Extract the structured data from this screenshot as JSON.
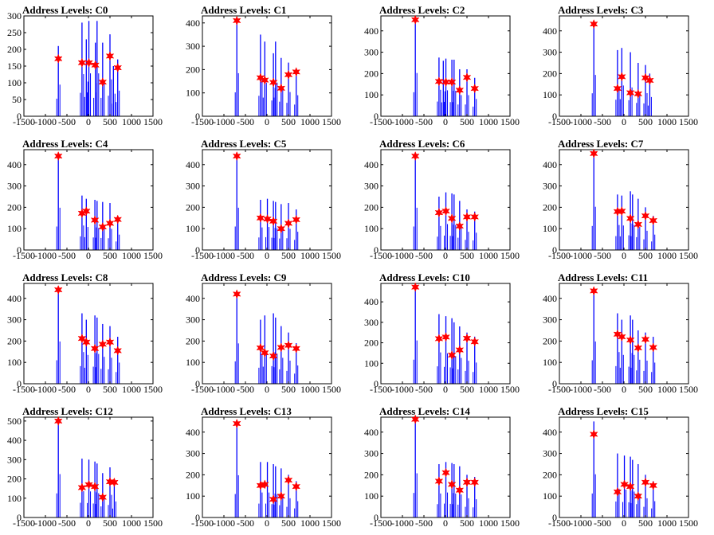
{
  "chart_data": [
    {
      "type": "bar",
      "title": "Address Levels: C0",
      "xlim": [
        -1500,
        1500
      ],
      "ylim": [
        0,
        300
      ],
      "yticks": [
        0,
        50,
        100,
        150,
        200,
        250,
        300
      ],
      "xticks": [
        -1500,
        -1000,
        -500,
        0,
        500,
        1000,
        1500
      ],
      "bars": [
        [
          -700,
          210
        ],
        [
          -150,
          280
        ],
        [
          -50,
          230
        ],
        [
          10,
          285
        ],
        [
          160,
          220
        ],
        [
          200,
          285
        ],
        [
          330,
          220
        ],
        [
          500,
          245
        ],
        [
          580,
          150
        ],
        [
          680,
          170
        ]
      ],
      "peaks": [
        [
          -700,
          172
        ],
        [
          -150,
          160
        ],
        [
          10,
          160
        ],
        [
          160,
          153
        ],
        [
          330,
          102
        ],
        [
          500,
          180
        ],
        [
          680,
          145
        ]
      ]
    },
    {
      "type": "bar",
      "title": "Address Levels: C1",
      "xlim": [
        -1500,
        1500
      ],
      "ylim": [
        0,
        430
      ],
      "yticks": [
        0,
        100,
        200,
        300,
        400
      ],
      "xticks": [
        -1500,
        -1000,
        -500,
        0,
        500,
        1000,
        1500
      ],
      "bars": [
        [
          -700,
          410
        ],
        [
          -150,
          350
        ],
        [
          -50,
          320
        ],
        [
          150,
          270
        ],
        [
          200,
          320
        ],
        [
          330,
          250
        ],
        [
          500,
          230
        ],
        [
          680,
          200
        ]
      ],
      "peaks": [
        [
          -700,
          410
        ],
        [
          -150,
          165
        ],
        [
          -50,
          155
        ],
        [
          150,
          145
        ],
        [
          330,
          120
        ],
        [
          500,
          178
        ],
        [
          680,
          190
        ]
      ]
    },
    {
      "type": "bar",
      "title": "Address Levels: C2",
      "xlim": [
        -1500,
        1500
      ],
      "ylim": [
        0,
        470
      ],
      "yticks": [
        0,
        100,
        200,
        300,
        400
      ],
      "xticks": [
        -1500,
        -1000,
        -500,
        0,
        500,
        1000,
        1500
      ],
      "bars": [
        [
          -700,
          450
        ],
        [
          -150,
          275
        ],
        [
          -50,
          260
        ],
        [
          10,
          270
        ],
        [
          150,
          265
        ],
        [
          200,
          265
        ],
        [
          330,
          220
        ],
        [
          500,
          220
        ],
        [
          680,
          180
        ]
      ],
      "peaks": [
        [
          -700,
          452
        ],
        [
          -150,
          163
        ],
        [
          10,
          160
        ],
        [
          150,
          160
        ],
        [
          330,
          122
        ],
        [
          500,
          182
        ],
        [
          680,
          130
        ]
      ]
    },
    {
      "type": "bar",
      "title": "Address Levels: C3",
      "xlim": [
        -1500,
        1500
      ],
      "ylim": [
        0,
        470
      ],
      "yticks": [
        0,
        100,
        200,
        300,
        400
      ],
      "xticks": [
        -1500,
        -1000,
        -500,
        0,
        500,
        1000,
        1500
      ],
      "bars": [
        [
          -700,
          430
        ],
        [
          -150,
          310
        ],
        [
          -50,
          320
        ],
        [
          150,
          300
        ],
        [
          330,
          250
        ],
        [
          500,
          240
        ],
        [
          600,
          200
        ]
      ],
      "peaks": [
        [
          -700,
          432
        ],
        [
          -150,
          130
        ],
        [
          -50,
          185
        ],
        [
          150,
          110
        ],
        [
          330,
          105
        ],
        [
          500,
          180
        ],
        [
          600,
          168
        ]
      ]
    },
    {
      "type": "bar",
      "title": "Address Levels: C4",
      "xlim": [
        -1500,
        1500
      ],
      "ylim": [
        0,
        470
      ],
      "yticks": [
        0,
        100,
        200,
        300,
        400
      ],
      "xticks": [
        -1500,
        -1000,
        -500,
        0,
        500,
        1000,
        1500
      ],
      "bars": [
        [
          -700,
          440
        ],
        [
          -150,
          255
        ],
        [
          -50,
          240
        ],
        [
          150,
          235
        ],
        [
          200,
          230
        ],
        [
          330,
          225
        ],
        [
          500,
          220
        ],
        [
          680,
          160
        ]
      ],
      "peaks": [
        [
          -700,
          440
        ],
        [
          -150,
          172
        ],
        [
          -50,
          182
        ],
        [
          150,
          140
        ],
        [
          330,
          108
        ],
        [
          500,
          125
        ],
        [
          680,
          143
        ]
      ]
    },
    {
      "type": "bar",
      "title": "Address Levels: C5",
      "xlim": [
        -1500,
        1500
      ],
      "ylim": [
        0,
        470
      ],
      "yticks": [
        0,
        100,
        200,
        300,
        400
      ],
      "xticks": [
        -1500,
        -1000,
        -500,
        0,
        500,
        1000,
        1500
      ],
      "bars": [
        [
          -700,
          440
        ],
        [
          -150,
          235
        ],
        [
          10,
          240
        ],
        [
          150,
          230
        ],
        [
          200,
          225
        ],
        [
          330,
          215
        ],
        [
          500,
          220
        ],
        [
          680,
          190
        ]
      ],
      "peaks": [
        [
          -700,
          440
        ],
        [
          -150,
          150
        ],
        [
          10,
          145
        ],
        [
          150,
          135
        ],
        [
          330,
          100
        ],
        [
          500,
          125
        ],
        [
          680,
          142
        ]
      ]
    },
    {
      "type": "bar",
      "title": "Address Levels: C6",
      "xlim": [
        -1500,
        1500
      ],
      "ylim": [
        0,
        470
      ],
      "yticks": [
        0,
        100,
        200,
        300,
        400
      ],
      "xticks": [
        -1500,
        -1000,
        -500,
        0,
        500,
        1000,
        1500
      ],
      "bars": [
        [
          -700,
          440
        ],
        [
          -150,
          250
        ],
        [
          10,
          270
        ],
        [
          150,
          265
        ],
        [
          200,
          260
        ],
        [
          330,
          230
        ],
        [
          500,
          190
        ],
        [
          680,
          180
        ]
      ],
      "peaks": [
        [
          -700,
          440
        ],
        [
          -150,
          175
        ],
        [
          10,
          182
        ],
        [
          150,
          148
        ],
        [
          330,
          112
        ],
        [
          500,
          155
        ],
        [
          680,
          155
        ]
      ]
    },
    {
      "type": "bar",
      "title": "Address Levels: C7",
      "xlim": [
        -1500,
        1500
      ],
      "ylim": [
        0,
        470
      ],
      "yticks": [
        0,
        100,
        200,
        300,
        400
      ],
      "xticks": [
        -1500,
        -1000,
        -500,
        0,
        500,
        1000,
        1500
      ],
      "bars": [
        [
          -700,
          450
        ],
        [
          -150,
          260
        ],
        [
          -50,
          255
        ],
        [
          150,
          275
        ],
        [
          200,
          260
        ],
        [
          330,
          240
        ],
        [
          500,
          200
        ],
        [
          680,
          160
        ]
      ],
      "peaks": [
        [
          -700,
          452
        ],
        [
          -150,
          180
        ],
        [
          -50,
          182
        ],
        [
          150,
          148
        ],
        [
          330,
          120
        ],
        [
          500,
          160
        ],
        [
          680,
          138
        ]
      ]
    },
    {
      "type": "bar",
      "title": "Address Levels: C8",
      "xlim": [
        -1500,
        1500
      ],
      "ylim": [
        0,
        470
      ],
      "yticks": [
        0,
        100,
        200,
        300,
        400
      ],
      "xticks": [
        -1500,
        -1000,
        -500,
        0,
        500,
        1000,
        1500
      ],
      "bars": [
        [
          -700,
          440
        ],
        [
          -150,
          330
        ],
        [
          -50,
          300
        ],
        [
          150,
          320
        ],
        [
          200,
          310
        ],
        [
          330,
          280
        ],
        [
          500,
          270
        ],
        [
          680,
          220
        ]
      ],
      "peaks": [
        [
          -700,
          440
        ],
        [
          -150,
          212
        ],
        [
          -50,
          195
        ],
        [
          150,
          165
        ],
        [
          330,
          185
        ],
        [
          500,
          195
        ],
        [
          680,
          155
        ]
      ]
    },
    {
      "type": "bar",
      "title": "Address Levels: C9",
      "xlim": [
        -1500,
        1500
      ],
      "ylim": [
        0,
        470
      ],
      "yticks": [
        0,
        100,
        200,
        300,
        400
      ],
      "xticks": [
        -1500,
        -1000,
        -500,
        0,
        500,
        1000,
        1500
      ],
      "bars": [
        [
          -700,
          420
        ],
        [
          -150,
          300
        ],
        [
          -50,
          320
        ],
        [
          150,
          330
        ],
        [
          200,
          310
        ],
        [
          330,
          270
        ],
        [
          500,
          240
        ],
        [
          680,
          190
        ]
      ],
      "peaks": [
        [
          -700,
          420
        ],
        [
          -150,
          168
        ],
        [
          -50,
          145
        ],
        [
          150,
          130
        ],
        [
          330,
          170
        ],
        [
          500,
          180
        ],
        [
          680,
          165
        ]
      ]
    },
    {
      "type": "bar",
      "title": "Address Levels: C10",
      "xlim": [
        -1500,
        1500
      ],
      "ylim": [
        0,
        490
      ],
      "yticks": [
        0,
        100,
        200,
        300,
        400
      ],
      "xticks": [
        -1500,
        -1000,
        -500,
        0,
        500,
        1000,
        1500
      ],
      "bars": [
        [
          -700,
          470
        ],
        [
          -150,
          340
        ],
        [
          10,
          330
        ],
        [
          150,
          320
        ],
        [
          200,
          300
        ],
        [
          330,
          280
        ],
        [
          500,
          250
        ],
        [
          680,
          230
        ]
      ],
      "peaks": [
        [
          -700,
          472
        ],
        [
          -150,
          220
        ],
        [
          10,
          228
        ],
        [
          150,
          140
        ],
        [
          330,
          165
        ],
        [
          500,
          222
        ],
        [
          680,
          205
        ]
      ]
    },
    {
      "type": "bar",
      "title": "Address Levels: C11",
      "xlim": [
        -1500,
        1500
      ],
      "ylim": [
        0,
        470
      ],
      "yticks": [
        0,
        100,
        200,
        300,
        400
      ],
      "xticks": [
        -1500,
        -1000,
        -500,
        0,
        500,
        1000,
        1500
      ],
      "bars": [
        [
          -700,
          440
        ],
        [
          -150,
          330
        ],
        [
          -50,
          300
        ],
        [
          150,
          320
        ],
        [
          200,
          300
        ],
        [
          330,
          250
        ],
        [
          500,
          240
        ],
        [
          680,
          220
        ]
      ],
      "peaks": [
        [
          -700,
          435
        ],
        [
          -150,
          232
        ],
        [
          -50,
          220
        ],
        [
          150,
          205
        ],
        [
          330,
          168
        ],
        [
          500,
          208
        ],
        [
          680,
          170
        ]
      ]
    },
    {
      "type": "bar",
      "title": "Address Levels: C12",
      "xlim": [
        -1500,
        1500
      ],
      "ylim": [
        0,
        520
      ],
      "yticks": [
        0,
        100,
        200,
        300,
        400,
        500
      ],
      "xticks": [
        -1500,
        -1000,
        -500,
        0,
        500,
        1000,
        1500
      ],
      "bars": [
        [
          -700,
          500
        ],
        [
          -150,
          305
        ],
        [
          10,
          300
        ],
        [
          150,
          290
        ],
        [
          200,
          280
        ],
        [
          330,
          230
        ],
        [
          500,
          260
        ],
        [
          600,
          185
        ]
      ],
      "peaks": [
        [
          -700,
          500
        ],
        [
          -150,
          155
        ],
        [
          10,
          170
        ],
        [
          150,
          160
        ],
        [
          330,
          105
        ],
        [
          500,
          185
        ],
        [
          600,
          182
        ]
      ]
    },
    {
      "type": "bar",
      "title": "Address Levels: C13",
      "xlim": [
        -1500,
        1500
      ],
      "ylim": [
        0,
        470
      ],
      "yticks": [
        0,
        100,
        200,
        300,
        400
      ],
      "xticks": [
        -1500,
        -1000,
        -500,
        0,
        500,
        1000,
        1500
      ],
      "bars": [
        [
          -700,
          440
        ],
        [
          -150,
          260
        ],
        [
          10,
          260
        ],
        [
          150,
          250
        ],
        [
          200,
          240
        ],
        [
          330,
          230
        ],
        [
          500,
          200
        ],
        [
          680,
          170
        ]
      ],
      "peaks": [
        [
          -700,
          440
        ],
        [
          -150,
          150
        ],
        [
          -50,
          155
        ],
        [
          150,
          85
        ],
        [
          330,
          100
        ],
        [
          500,
          175
        ],
        [
          680,
          145
        ]
      ]
    },
    {
      "type": "bar",
      "title": "Address Levels: C14",
      "xlim": [
        -1500,
        1500
      ],
      "ylim": [
        0,
        470
      ],
      "yticks": [
        0,
        100,
        200,
        300,
        400
      ],
      "xticks": [
        -1500,
        -1000,
        -500,
        0,
        500,
        1000,
        1500
      ],
      "bars": [
        [
          -700,
          460
        ],
        [
          -150,
          250
        ],
        [
          10,
          260
        ],
        [
          150,
          255
        ],
        [
          200,
          250
        ],
        [
          330,
          240
        ],
        [
          500,
          200
        ],
        [
          680,
          190
        ]
      ],
      "peaks": [
        [
          -700,
          460
        ],
        [
          -150,
          170
        ],
        [
          10,
          210
        ],
        [
          150,
          155
        ],
        [
          330,
          128
        ],
        [
          500,
          165
        ],
        [
          680,
          165
        ]
      ]
    },
    {
      "type": "bar",
      "title": "Address Levels: C15",
      "xlim": [
        -1500,
        1500
      ],
      "ylim": [
        0,
        470
      ],
      "yticks": [
        0,
        100,
        200,
        300,
        400
      ],
      "xticks": [
        -1500,
        -1000,
        -500,
        0,
        500,
        1000,
        1500
      ],
      "bars": [
        [
          -700,
          450
        ],
        [
          -150,
          300
        ],
        [
          10,
          290
        ],
        [
          150,
          285
        ],
        [
          200,
          270
        ],
        [
          330,
          250
        ],
        [
          500,
          200
        ],
        [
          680,
          170
        ]
      ],
      "peaks": [
        [
          -700,
          390
        ],
        [
          -150,
          120
        ],
        [
          10,
          155
        ],
        [
          150,
          145
        ],
        [
          330,
          100
        ],
        [
          500,
          165
        ],
        [
          680,
          150
        ]
      ]
    }
  ],
  "colors": {
    "bar": "#0000ff",
    "marker": "#ff0000",
    "axis": "#000000"
  }
}
